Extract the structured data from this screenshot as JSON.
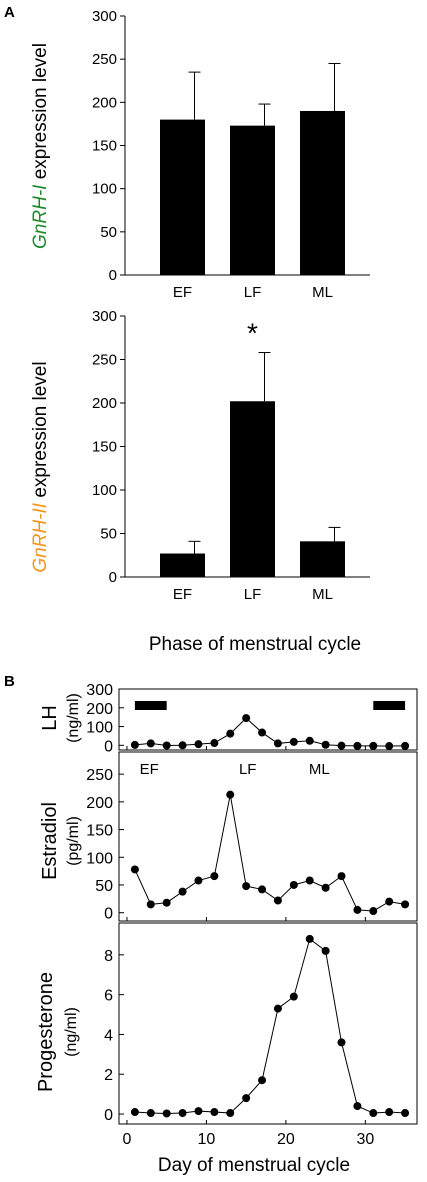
{
  "panel_labels": {
    "a": "A",
    "b": "B"
  },
  "colors": {
    "gnrh1": "#1f8a2e",
    "gnrh2": "#f0961e",
    "ink": "#000000"
  },
  "chart_data": [
    {
      "type": "bar",
      "panel": "A",
      "categories": [
        "EF",
        "LF",
        "ML"
      ],
      "values": [
        180,
        173,
        190
      ],
      "errors": [
        55,
        25,
        55
      ],
      "ylabel_gene": "GnRH-I",
      "ylabel_rest": " expression level",
      "ylim": [
        0,
        300
      ],
      "yticks": [
        0,
        50,
        100,
        150,
        200,
        250,
        300
      ],
      "xlabel": "",
      "annotations": []
    },
    {
      "type": "bar",
      "panel": "A",
      "categories": [
        "EF",
        "LF",
        "ML"
      ],
      "values": [
        27,
        202,
        41
      ],
      "errors": [
        14,
        56,
        16
      ],
      "ylabel_gene": "GnRH-II",
      "ylabel_rest": " expression level",
      "ylim": [
        0,
        300
      ],
      "yticks": [
        0,
        50,
        100,
        150,
        200,
        250,
        300
      ],
      "xlabel": "Phase of menstrual cycle",
      "annotations": [
        {
          "category": "LF",
          "text": "*"
        }
      ]
    },
    {
      "type": "line",
      "panel": "B",
      "ylabel": "LH",
      "yunit": "(ng/ml)",
      "x": [
        1,
        3,
        5,
        7,
        9,
        11,
        13,
        15,
        17,
        19,
        21,
        23,
        25,
        27,
        29,
        31,
        33,
        35
      ],
      "y": [
        2,
        10,
        -1,
        0,
        6,
        12,
        62,
        145,
        68,
        10,
        18,
        24,
        3,
        -2,
        -3,
        -3,
        -4,
        -3
      ],
      "ylim": [
        -25,
        300
      ],
      "yticks": [
        0,
        100,
        200,
        300
      ],
      "phase_bars": [
        {
          "from": 1,
          "to": 5
        },
        {
          "from": 31,
          "to": 35
        }
      ]
    },
    {
      "type": "line",
      "panel": "B",
      "ylabel": "Estradiol",
      "yunit": "(pg/ml)",
      "x": [
        1,
        3,
        5,
        7,
        9,
        11,
        13,
        15,
        17,
        19,
        21,
        23,
        25,
        27,
        29,
        31,
        33,
        35
      ],
      "y": [
        78,
        15,
        18,
        38,
        58,
        66,
        213,
        48,
        42,
        22,
        50,
        58,
        45,
        66,
        5,
        3,
        20,
        15
      ],
      "ylim": [
        -15,
        290
      ],
      "yticks": [
        0,
        50,
        100,
        150,
        200,
        250
      ],
      "phase_labels": [
        {
          "x": 2.8,
          "text": "EF"
        },
        {
          "x": 15.2,
          "text": "LF"
        },
        {
          "x": 24.2,
          "text": "ML"
        }
      ]
    },
    {
      "type": "line",
      "panel": "B",
      "ylabel": "Progesterone",
      "yunit": "(ng/ml)",
      "x": [
        1,
        3,
        5,
        7,
        9,
        11,
        13,
        15,
        17,
        19,
        21,
        23,
        25,
        27,
        29,
        31,
        33,
        35
      ],
      "y": [
        0.1,
        0.05,
        0.03,
        0.05,
        0.15,
        0.1,
        0.05,
        0.8,
        1.7,
        5.3,
        5.9,
        8.8,
        8.2,
        3.6,
        0.4,
        0.05,
        0.1,
        0.05
      ],
      "ylim": [
        -0.5,
        9.6
      ],
      "yticks": [
        0,
        2,
        4,
        6,
        8
      ],
      "xticks": [
        0,
        10,
        20,
        30
      ],
      "xlim": [
        -1,
        36.5
      ],
      "xlabel": "Day of menstrual cycle"
    }
  ]
}
